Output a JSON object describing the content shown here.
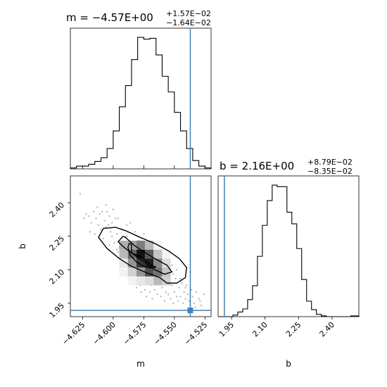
{
  "chart_data": {
    "type": "corner",
    "parameters": [
      "m",
      "b"
    ],
    "truth": {
      "m": -4.537,
      "b": 1.918
    },
    "titles": {
      "m": {
        "name": "m",
        "value": "−4.57E+00",
        "upper": "+1.57E−02",
        "lower": "−1.64E−02"
      },
      "b": {
        "name": "b",
        "value": "2.16E+00",
        "upper": "+8.79E−02",
        "lower": "−8.35E−02"
      }
    },
    "axes": {
      "m": {
        "range": [
          -4.635,
          -4.52
        ],
        "ticks": [
          -4.625,
          -4.6,
          -4.575,
          -4.55,
          -4.525
        ],
        "tick_labels": [
          "−4.625",
          "−4.600",
          "−4.575",
          "−4.550",
          "−4.525"
        ],
        "label": "m"
      },
      "b": {
        "range": [
          1.89,
          2.52
        ],
        "ticks": [
          1.95,
          2.1,
          2.25,
          2.4
        ],
        "tick_labels": [
          "1.95",
          "2.10",
          "2.25",
          "2.40"
        ],
        "label": "b"
      }
    },
    "hist_m": {
      "edges": [
        -4.635,
        -4.63,
        -4.625,
        -4.62,
        -4.615,
        -4.61,
        -4.605,
        -4.6,
        -4.595,
        -4.59,
        -4.585,
        -4.58,
        -4.575,
        -4.57,
        -4.565,
        -4.56,
        -4.555,
        -4.55,
        -4.545,
        -4.54,
        -4.535,
        -4.53,
        -4.525,
        -4.52
      ],
      "counts": [
        1,
        3,
        3,
        5,
        8,
        12,
        22,
        41,
        67,
        90,
        118,
        142,
        140,
        141,
        123,
        100,
        83,
        61,
        41,
        22,
        9,
        3,
        1
      ]
    },
    "hist_b": {
      "edges": [
        1.89,
        1.912,
        1.934,
        1.956,
        1.978,
        2.0,
        2.022,
        2.044,
        2.066,
        2.088,
        2.11,
        2.132,
        2.154,
        2.176,
        2.198,
        2.22,
        2.242,
        2.264,
        2.286,
        2.308,
        2.33,
        2.352,
        2.374,
        2.396,
        2.418,
        2.44,
        2.462,
        2.484,
        2.506,
        2.52
      ],
      "counts": [
        0,
        0,
        0,
        2,
        6,
        10,
        22,
        40,
        78,
        118,
        150,
        170,
        168,
        168,
        135,
        120,
        88,
        48,
        20,
        9,
        3,
        1,
        0,
        0,
        0,
        0,
        0,
        1,
        1
      ]
    },
    "hist2d": {
      "m_edges": [
        -4.595,
        -4.588,
        -4.581,
        -4.574,
        -4.567,
        -4.56,
        -4.553
      ],
      "b_edges": [
        2.03,
        2.07,
        2.11,
        2.15,
        2.19,
        2.23
      ],
      "density": [
        [
          0.0,
          0.05,
          0.1,
          0.3,
          0.35,
          0.15
        ],
        [
          0.05,
          0.2,
          0.45,
          0.65,
          0.4,
          0.1
        ],
        [
          0.1,
          0.45,
          0.85,
          1.0,
          0.55,
          0.08
        ],
        [
          0.15,
          0.75,
          0.95,
          0.7,
          0.3,
          0.02
        ],
        [
          0.3,
          0.6,
          0.5,
          0.25,
          0.05,
          0.0
        ],
        [
          0.2,
          0.25,
          0.15,
          0.05,
          0.0,
          0.0
        ]
      ]
    },
    "contours": [
      [
        [
          -4.585,
          2.215
        ],
        [
          -4.585,
          2.175
        ],
        [
          -4.578,
          2.16
        ],
        [
          -4.572,
          2.135
        ],
        [
          -4.568,
          2.118
        ],
        [
          -4.565,
          2.112
        ],
        [
          -4.57,
          2.108
        ],
        [
          -4.575,
          2.115
        ],
        [
          -4.581,
          2.135
        ],
        [
          -4.586,
          2.165
        ],
        [
          -4.588,
          2.2
        ],
        [
          -4.587,
          2.217
        ],
        [
          -4.585,
          2.215
        ]
      ],
      [
        [
          -4.592,
          2.25
        ],
        [
          -4.596,
          2.225
        ],
        [
          -4.59,
          2.195
        ],
        [
          -4.581,
          2.16
        ],
        [
          -4.572,
          2.125
        ],
        [
          -4.566,
          2.1
        ],
        [
          -4.558,
          2.08
        ],
        [
          -4.552,
          2.09
        ],
        [
          -4.556,
          2.12
        ],
        [
          -4.566,
          2.15
        ],
        [
          -4.575,
          2.18
        ],
        [
          -4.583,
          2.21
        ],
        [
          -4.59,
          2.245
        ],
        [
          -4.592,
          2.25
        ]
      ],
      [
        [
          -4.608,
          2.285
        ],
        [
          -4.598,
          2.29
        ],
        [
          -4.59,
          2.275
        ],
        [
          -4.578,
          2.245
        ],
        [
          -4.565,
          2.215
        ],
        [
          -4.555,
          2.185
        ],
        [
          -4.546,
          2.15
        ],
        [
          -4.54,
          2.11
        ],
        [
          -4.541,
          2.065
        ],
        [
          -4.548,
          2.04
        ],
        [
          -4.556,
          2.04
        ],
        [
          -4.562,
          2.065
        ],
        [
          -4.572,
          2.085
        ],
        [
          -4.585,
          2.115
        ],
        [
          -4.595,
          2.15
        ],
        [
          -4.605,
          2.195
        ],
        [
          -4.612,
          2.245
        ],
        [
          -4.608,
          2.285
        ]
      ]
    ],
    "scatter": [
      [
        -4.627,
        2.44
      ],
      [
        -4.624,
        2.33
      ],
      [
        -4.62,
        2.34
      ],
      [
        -4.618,
        2.31
      ],
      [
        -4.616,
        2.36
      ],
      [
        -4.614,
        2.33
      ],
      [
        -4.612,
        2.3
      ],
      [
        -4.611,
        2.35
      ],
      [
        -4.609,
        2.36
      ],
      [
        -4.607,
        2.32
      ],
      [
        -4.606,
        2.29
      ],
      [
        -4.605,
        2.36
      ],
      [
        -4.604,
        2.3
      ],
      [
        -4.603,
        2.34
      ],
      [
        -4.602,
        2.27
      ],
      [
        -4.601,
        2.31
      ],
      [
        -4.6,
        2.37
      ],
      [
        -4.599,
        2.22
      ],
      [
        -4.598,
        2.33
      ],
      [
        -4.597,
        2.26
      ],
      [
        -4.596,
        2.18
      ],
      [
        -4.595,
        2.2
      ],
      [
        -4.594,
        2.15
      ],
      [
        -4.593,
        2.24
      ],
      [
        -4.592,
        2.12
      ],
      [
        -4.591,
        2.17
      ],
      [
        -4.59,
        2.1
      ],
      [
        -4.589,
        2.25
      ],
      [
        -4.588,
        2.08
      ],
      [
        -4.587,
        2.14
      ],
      [
        -4.586,
        2.31
      ],
      [
        -4.585,
        2.06
      ],
      [
        -4.584,
        2.12
      ],
      [
        -4.583,
        2.04
      ],
      [
        -4.582,
        2.27
      ],
      [
        -4.581,
        2.02
      ],
      [
        -4.58,
        2.09
      ],
      [
        -4.579,
        2.23
      ],
      [
        -4.578,
        2.03
      ],
      [
        -4.577,
        2.0
      ],
      [
        -4.576,
        2.07
      ],
      [
        -4.575,
        2.26
      ],
      [
        -4.574,
        2.01
      ],
      [
        -4.573,
        1.98
      ],
      [
        -4.572,
        2.05
      ],
      [
        -4.571,
        2.2
      ],
      [
        -4.57,
        2.0
      ],
      [
        -4.569,
        2.03
      ],
      [
        -4.568,
        1.97
      ],
      [
        -4.567,
        2.16
      ],
      [
        -4.566,
        2.01
      ],
      [
        -4.565,
        2.21
      ],
      [
        -4.564,
        1.99
      ],
      [
        -4.563,
        2.04
      ],
      [
        -4.562,
        2.18
      ],
      [
        -4.561,
        1.98
      ],
      [
        -4.56,
        2.02
      ],
      [
        -4.559,
        2.15
      ],
      [
        -4.558,
        1.96
      ],
      [
        -4.557,
        2.0
      ],
      [
        -4.556,
        2.13
      ],
      [
        -4.555,
        1.99
      ],
      [
        -4.554,
        2.09
      ],
      [
        -4.553,
        1.97
      ],
      [
        -4.552,
        2.03
      ],
      [
        -4.551,
        1.95
      ],
      [
        -4.55,
        2.0
      ],
      [
        -4.549,
        2.06
      ],
      [
        -4.548,
        1.98
      ],
      [
        -4.547,
        1.96
      ],
      [
        -4.546,
        2.02
      ],
      [
        -4.545,
        1.98
      ],
      [
        -4.544,
        2.04
      ],
      [
        -4.543,
        1.95
      ],
      [
        -4.542,
        2.0
      ],
      [
        -4.541,
        1.97
      ],
      [
        -4.54,
        2.03
      ],
      [
        -4.539,
        1.99
      ],
      [
        -4.538,
        1.96
      ],
      [
        -4.536,
        2.01
      ],
      [
        -4.535,
        1.98
      ],
      [
        -4.534,
        1.95
      ],
      [
        -4.532,
        2.0
      ],
      [
        -4.53,
        1.97
      ],
      [
        -4.528,
        1.94
      ],
      [
        -4.526,
        1.99
      ],
      [
        -4.61,
        2.28
      ],
      [
        -4.608,
        2.24
      ],
      [
        -4.603,
        2.21
      ],
      [
        -4.597,
        2.19
      ],
      [
        -4.593,
        2.28
      ],
      [
        -4.589,
        2.3
      ],
      [
        -4.583,
        2.19
      ],
      [
        -4.577,
        2.21
      ],
      [
        -4.571,
        2.17
      ],
      [
        -4.566,
        2.12
      ],
      [
        -4.561,
        2.1
      ],
      [
        -4.555,
        2.07
      ],
      [
        -4.552,
        2.12
      ],
      [
        -4.548,
        2.1
      ],
      [
        -4.619,
        2.27
      ],
      [
        -4.615,
        2.26
      ],
      [
        -4.613,
        2.38
      ],
      [
        -4.606,
        2.39
      ],
      [
        -4.601,
        2.25
      ],
      [
        -4.596,
        2.33
      ],
      [
        -4.591,
        2.2
      ],
      [
        -4.586,
        2.22
      ],
      [
        -4.58,
        2.15
      ],
      [
        -4.574,
        2.14
      ],
      [
        -4.569,
        2.1
      ],
      [
        -4.563,
        2.08
      ],
      [
        -4.557,
        2.05
      ],
      [
        -4.551,
        2.08
      ],
      [
        -4.545,
        2.06
      ],
      [
        -4.541,
        2.02
      ],
      [
        -4.537,
        1.94
      ],
      [
        -4.533,
        1.93
      ],
      [
        -4.529,
        1.96
      ],
      [
        -4.622,
        2.35
      ]
    ]
  }
}
